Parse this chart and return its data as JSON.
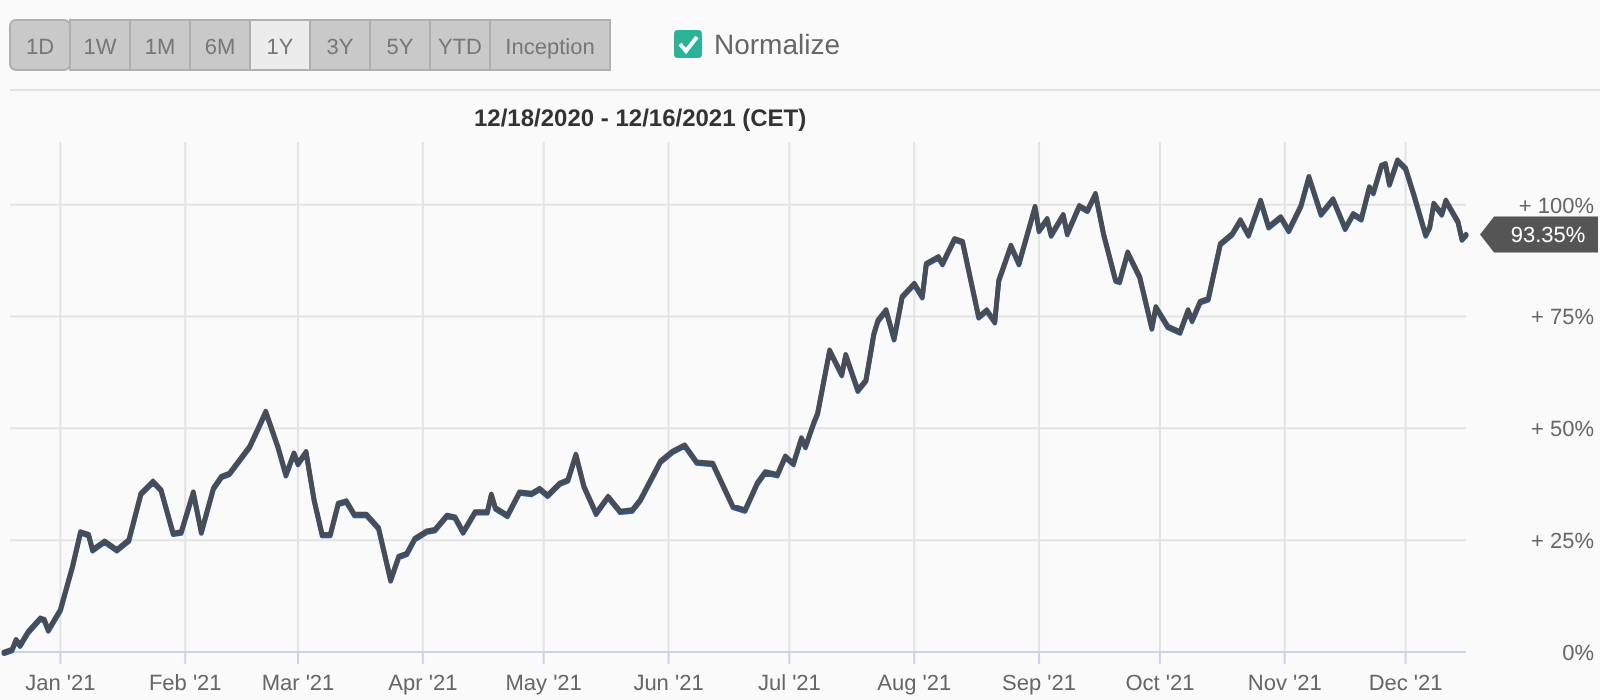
{
  "chart_data": {
    "type": "line",
    "subtitle": "12/18/2020 - 12/16/2021 (CET)",
    "annotations": [
      "1D",
      "1W",
      "1M",
      "6M",
      "1Y",
      "3Y",
      "5Y",
      "YTD",
      "Inception",
      "Normalize",
      {
        "text": "93.35%",
        "x": "2021-12-16",
        "y": 93.35
      }
    ],
    "x": [
      "2020-12-18",
      "2020-12-20",
      "2020-12-21",
      "2020-12-22",
      "2020-12-24",
      "2020-12-27",
      "2020-12-28",
      "2020-12-29",
      "2021-01-01",
      "2021-01-04",
      "2021-01-06",
      "2021-01-08",
      "2021-01-09",
      "2021-01-12",
      "2021-01-15",
      "2021-01-18",
      "2021-01-21",
      "2021-01-24",
      "2021-01-26",
      "2021-01-29",
      "2021-01-31",
      "2021-02-03",
      "2021-02-05",
      "2021-02-08",
      "2021-02-10",
      "2021-02-12",
      "2021-02-17",
      "2021-02-21",
      "2021-02-24",
      "2021-02-26",
      "2021-02-28",
      "2021-03-01",
      "2021-03-03",
      "2021-03-05",
      "2021-03-07",
      "2021-03-09",
      "2021-03-11",
      "2021-03-13",
      "2021-03-15",
      "2021-03-18",
      "2021-03-21",
      "2021-03-24",
      "2021-03-26",
      "2021-03-28",
      "2021-03-30",
      "2021-04-02",
      "2021-04-04",
      "2021-04-07",
      "2021-04-09",
      "2021-04-11",
      "2021-04-14",
      "2021-04-17",
      "2021-04-18",
      "2021-04-19",
      "2021-04-22",
      "2021-04-25",
      "2021-04-28",
      "2021-04-30",
      "2021-05-02",
      "2021-05-05",
      "2021-05-07",
      "2021-05-09",
      "2021-05-11",
      "2021-05-14",
      "2021-05-17",
      "2021-05-20",
      "2021-05-23",
      "2021-05-25",
      "2021-05-30",
      "2021-06-02",
      "2021-06-05",
      "2021-06-08",
      "2021-06-12",
      "2021-06-17",
      "2021-06-20",
      "2021-06-23",
      "2021-06-25",
      "2021-06-28",
      "2021-06-30",
      "2021-07-02",
      "2021-07-04",
      "2021-07-05",
      "2021-07-07",
      "2021-07-08",
      "2021-07-11",
      "2021-07-14",
      "2021-07-15",
      "2021-07-18",
      "2021-07-20",
      "2021-07-22",
      "2021-07-23",
      "2021-07-25",
      "2021-07-27",
      "2021-07-29",
      "2021-08-01",
      "2021-08-03",
      "2021-08-04",
      "2021-08-07",
      "2021-08-08",
      "2021-08-11",
      "2021-08-13",
      "2021-08-17",
      "2021-08-19",
      "2021-08-21",
      "2021-08-22",
      "2021-08-25",
      "2021-08-27",
      "2021-08-31",
      "2021-09-01",
      "2021-09-03",
      "2021-09-04",
      "2021-09-07",
      "2021-09-08",
      "2021-09-11",
      "2021-09-13",
      "2021-09-15",
      "2021-09-17",
      "2021-09-20",
      "2021-09-21",
      "2021-09-23",
      "2021-09-26",
      "2021-09-29",
      "2021-09-30",
      "2021-10-03",
      "2021-10-06",
      "2021-10-08",
      "2021-10-09",
      "2021-10-11",
      "2021-10-13",
      "2021-10-16",
      "2021-10-19",
      "2021-10-21",
      "2021-10-23",
      "2021-10-26",
      "2021-10-28",
      "2021-10-31",
      "2021-11-02",
      "2021-11-05",
      "2021-11-07",
      "2021-11-10",
      "2021-11-13",
      "2021-11-16",
      "2021-11-18",
      "2021-11-20",
      "2021-11-22",
      "2021-11-23",
      "2021-11-25",
      "2021-11-26",
      "2021-11-27",
      "2021-11-29",
      "2021-12-01",
      "2021-12-03",
      "2021-12-06",
      "2021-12-07",
      "2021-12-08",
      "2021-12-10",
      "2021-12-11",
      "2021-12-14",
      "2021-12-15",
      "2021-12-16"
    ],
    "series": [
      {
        "color": "#2a58a0",
        "values": [
          0,
          0.6,
          2.8,
          1.6,
          4.6,
          7.6,
          7.3,
          5,
          9.5,
          19.2,
          26.9,
          26.3,
          22.9,
          24.8,
          22.9,
          25.1,
          35.5,
          38.2,
          36.3,
          26.6,
          26.9,
          35.8,
          26.9,
          36.7,
          39.3,
          40,
          46,
          53.8,
          46,
          39.7,
          44.5,
          42.2,
          44.8,
          34.1,
          26.3,
          26.3,
          33.3,
          33.8,
          30.8,
          30.8,
          27.8,
          16.2,
          21.4,
          22.1,
          25.4,
          27.1,
          27.4,
          30.6,
          30.2,
          26.9,
          31.4,
          31.4,
          35.3,
          32.3,
          30.6,
          35.8,
          35.5,
          36.6,
          35.1,
          37.8,
          38.5,
          44.2,
          37.1,
          31.1,
          34.8,
          31.5,
          31.8,
          34.1,
          42.7,
          44.9,
          46.3,
          42.5,
          42.2,
          32.6,
          31.8,
          37.8,
          40.3,
          39.7,
          43.8,
          42.2,
          47.9,
          46,
          51.2,
          53.4,
          67.5,
          62.1,
          66.5,
          58.6,
          60.8,
          71.3,
          74.2,
          76.5,
          70.1,
          79.5,
          82.4,
          79.5,
          86.9,
          88.4,
          86.9,
          92.4,
          91.8,
          75,
          76.5,
          73.9,
          83.2,
          90.9,
          86.9,
          99.6,
          94.3,
          96.9,
          93.3,
          97.8,
          93.6,
          99.8,
          98.8,
          102.5,
          93.6,
          83.2,
          82.9,
          89.4,
          83.9,
          72.5,
          77.2,
          72.8,
          71.6,
          76.5,
          74.2,
          78.4,
          79,
          91.3,
          93.6,
          96.6,
          93.3,
          101,
          95.1,
          97.3,
          94.3,
          99.8,
          106.3,
          98,
          101.3,
          94.8,
          98,
          96.9,
          104,
          102.8,
          108.8,
          109.2,
          104.7,
          110,
          108.2,
          102.5,
          93.3,
          95.1,
          100.3,
          98,
          101,
          96.3,
          92.4,
          93.35
        ]
      },
      {
        "color": "#474c55",
        "values": [
          0,
          0.6,
          2.8,
          1.6,
          4.6,
          7.6,
          7.3,
          5,
          9.5,
          19.2,
          26.9,
          26.3,
          22.9,
          24.8,
          22.9,
          25.1,
          35.5,
          38.2,
          36.3,
          26.6,
          26.9,
          35.8,
          26.9,
          36.7,
          39.3,
          40,
          46,
          53.8,
          46,
          39.7,
          44.5,
          42.2,
          44.8,
          34.1,
          26.3,
          26.3,
          33.3,
          33.8,
          30.8,
          30.8,
          27.8,
          16.2,
          21.4,
          22.1,
          25.4,
          27.1,
          27.4,
          30.6,
          30.2,
          26.9,
          31.4,
          31.4,
          35.3,
          32.3,
          30.6,
          35.8,
          35.5,
          36.6,
          35.1,
          37.8,
          38.5,
          44.2,
          37.1,
          31.1,
          34.8,
          31.5,
          31.8,
          34.1,
          42.7,
          44.9,
          46.3,
          42.5,
          42.2,
          32.6,
          31.8,
          37.8,
          40.3,
          39.7,
          43.8,
          42.2,
          47.9,
          46,
          51.2,
          53.4,
          67.5,
          62.1,
          66.5,
          58.6,
          60.8,
          71.3,
          74.2,
          76.5,
          70.1,
          79.5,
          82.4,
          79.5,
          86.9,
          88.4,
          86.9,
          92.4,
          91.8,
          75,
          76.5,
          73.9,
          83.2,
          90.9,
          86.9,
          99.6,
          94.3,
          96.9,
          93.3,
          97.8,
          93.6,
          99.8,
          98.8,
          102.5,
          93.6,
          83.2,
          82.9,
          89.4,
          83.9,
          72.5,
          77.2,
          72.8,
          71.6,
          76.5,
          74.2,
          78.4,
          79,
          91.3,
          93.6,
          96.6,
          93.3,
          101,
          95.1,
          97.3,
          94.3,
          99.8,
          106.3,
          98,
          101.3,
          94.8,
          98,
          96.9,
          104,
          102.8,
          108.8,
          109.2,
          104.7,
          110,
          108.2,
          102.5,
          93.3,
          95.1,
          100.3,
          98,
          101,
          96.3,
          92.4,
          93.35
        ]
      }
    ],
    "xlim": [
      "2020-12-18",
      "2021-12-16"
    ],
    "xticks": [
      {
        "value": "2021-01-01",
        "label": "Jan '21"
      },
      {
        "value": "2021-02-01",
        "label": "Feb '21"
      },
      {
        "value": "2021-03-01",
        "label": "Mar '21"
      },
      {
        "value": "2021-04-01",
        "label": "Apr '21"
      },
      {
        "value": "2021-05-01",
        "label": "May '21"
      },
      {
        "value": "2021-06-01",
        "label": "Jun '21"
      },
      {
        "value": "2021-07-01",
        "label": "Jul '21"
      },
      {
        "value": "2021-08-01",
        "label": "Aug '21"
      },
      {
        "value": "2021-09-01",
        "label": "Sep '21"
      },
      {
        "value": "2021-10-01",
        "label": "Oct '21"
      },
      {
        "value": "2021-11-01",
        "label": "Nov '21"
      },
      {
        "value": "2021-12-01",
        "label": "Dec '21"
      }
    ],
    "ylim": [
      0,
      114
    ],
    "yticks": [
      {
        "value": 0,
        "label": "0%"
      },
      {
        "value": 25,
        "label": "+ 25%"
      },
      {
        "value": 50,
        "label": "+ 50%"
      },
      {
        "value": 75,
        "label": "+ 75%"
      },
      {
        "value": 100,
        "label": "+ 100%"
      }
    ],
    "grid": true,
    "marker": "none",
    "line_style": "solid"
  }
}
